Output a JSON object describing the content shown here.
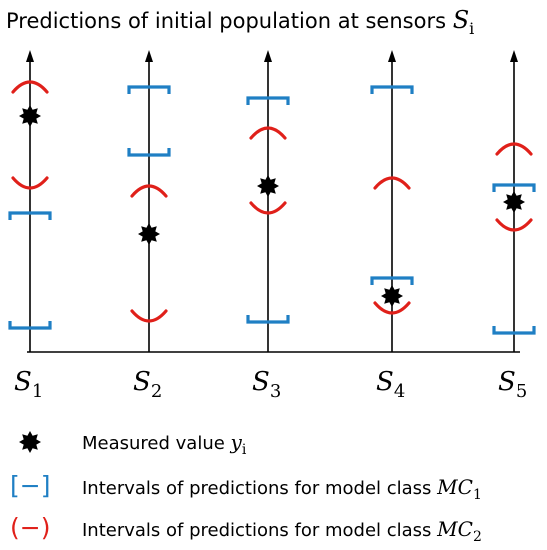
{
  "title": {
    "text": "Predictions of initial population at sensors ",
    "symbol": "S",
    "sub": "i"
  },
  "colors": {
    "mc1": "#1f7fc4",
    "mc2": "#e0201a",
    "axis": "#000000",
    "star": "#000000"
  },
  "sensors": [
    {
      "symbol": "S",
      "sub": "1"
    },
    {
      "symbol": "S",
      "sub": "2"
    },
    {
      "symbol": "S",
      "sub": "3"
    },
    {
      "symbol": "S",
      "sub": "4"
    },
    {
      "symbol": "S",
      "sub": "5"
    }
  ],
  "legend": {
    "measured": {
      "text": "Measured value ",
      "symbol": "y",
      "sub": "i",
      "icon": "star-icon"
    },
    "mc1": {
      "marker": "[−]",
      "text": "Intervals of predictions for model class ",
      "symbol": "MC",
      "sub": "1"
    },
    "mc2": {
      "marker": "(−)",
      "text": "Intervals of predictions for model class ",
      "symbol": "MC",
      "sub": "2"
    }
  }
}
